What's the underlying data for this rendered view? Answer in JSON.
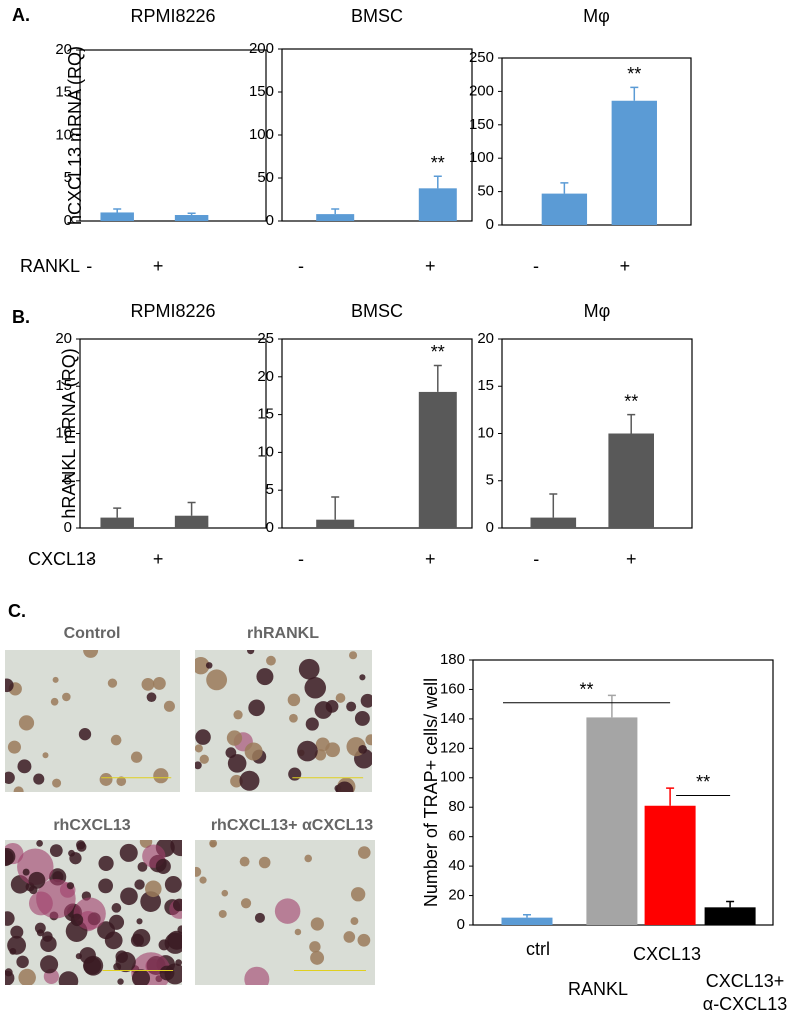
{
  "figure": {
    "panel_labels": [
      "A.",
      "B.",
      "C."
    ]
  },
  "micrographs": {
    "captions": [
      "Control",
      "rhRANKL",
      "rhCXCL13",
      "rhCXCL13+ αCXCL13"
    ]
  },
  "chart_data": [
    {
      "type": "bar",
      "title": "RPMI8226",
      "ylabel": "hCXCL13 mRNA (RQ)",
      "xlabel": "RANKL",
      "categories": [
        "-",
        "+"
      ],
      "values": [
        1.0,
        0.7
      ],
      "errors": [
        0.4,
        0.2
      ],
      "color": "#5b9bd5",
      "ylim": [
        0,
        20
      ],
      "yticks": [
        0,
        5,
        10,
        15,
        20
      ],
      "annotations": [
        null,
        null
      ]
    },
    {
      "type": "bar",
      "title": "BMSC",
      "categories": [
        "-",
        "+"
      ],
      "values": [
        8,
        38
      ],
      "errors": [
        6,
        14
      ],
      "color": "#5b9bd5",
      "ylim": [
        0,
        200
      ],
      "yticks": [
        0,
        50,
        100,
        150,
        200
      ],
      "annotations": [
        null,
        "**"
      ]
    },
    {
      "type": "bar",
      "title": "Mφ",
      "categories": [
        "-",
        "+"
      ],
      "values": [
        47,
        186
      ],
      "errors": [
        16,
        20
      ],
      "color": "#5b9bd5",
      "ylim": [
        0,
        250
      ],
      "yticks": [
        0,
        50,
        100,
        150,
        200,
        250
      ],
      "annotations": [
        null,
        "**"
      ]
    },
    {
      "type": "bar",
      "title": "RPMI8226",
      "ylabel": "hRANKL mRNA (RQ)",
      "xlabel": "CXCL13",
      "categories": [
        "-",
        "+"
      ],
      "values": [
        1.1,
        1.3
      ],
      "errors": [
        1.0,
        1.4
      ],
      "color": "#595959",
      "ylim": [
        0,
        20
      ],
      "yticks": [
        0,
        5,
        10,
        15,
        20
      ],
      "annotations": [
        null,
        null
      ]
    },
    {
      "type": "bar",
      "title": "BMSC",
      "categories": [
        "-",
        "+"
      ],
      "values": [
        1.1,
        18
      ],
      "errors": [
        3.0,
        3.5
      ],
      "color": "#595959",
      "ylim": [
        0,
        25
      ],
      "yticks": [
        0,
        5,
        10,
        15,
        20,
        25
      ],
      "annotations": [
        null,
        "**"
      ]
    },
    {
      "type": "bar",
      "title": "Mφ",
      "categories": [
        "-",
        "+"
      ],
      "values": [
        1.1,
        10
      ],
      "errors": [
        2.5,
        2.0
      ],
      "color": "#595959",
      "ylim": [
        0,
        20
      ],
      "yticks": [
        0,
        5,
        10,
        15,
        20
      ],
      "annotations": [
        null,
        "**"
      ]
    },
    {
      "type": "bar",
      "ylabel": "Number of TRAP+ cells/ well",
      "categories": [
        "ctrl",
        "RANKL",
        "CXCL13",
        [
          "CXCL13+",
          "α-CXCL13"
        ]
      ],
      "values": [
        5,
        141,
        81,
        12
      ],
      "errors": [
        2,
        15,
        12,
        4
      ],
      "colors": [
        "#5b9bd5",
        "#a5a5a5",
        "#ff0000",
        "#000000"
      ],
      "ylim": [
        0,
        180
      ],
      "yticks": [
        0,
        20,
        40,
        60,
        80,
        100,
        120,
        140,
        160,
        180
      ],
      "brackets": [
        {
          "from": 0,
          "to": 2,
          "y": 151,
          "text": "**"
        },
        {
          "from": 2,
          "to": 3,
          "y": 88,
          "text": "**"
        }
      ]
    }
  ]
}
